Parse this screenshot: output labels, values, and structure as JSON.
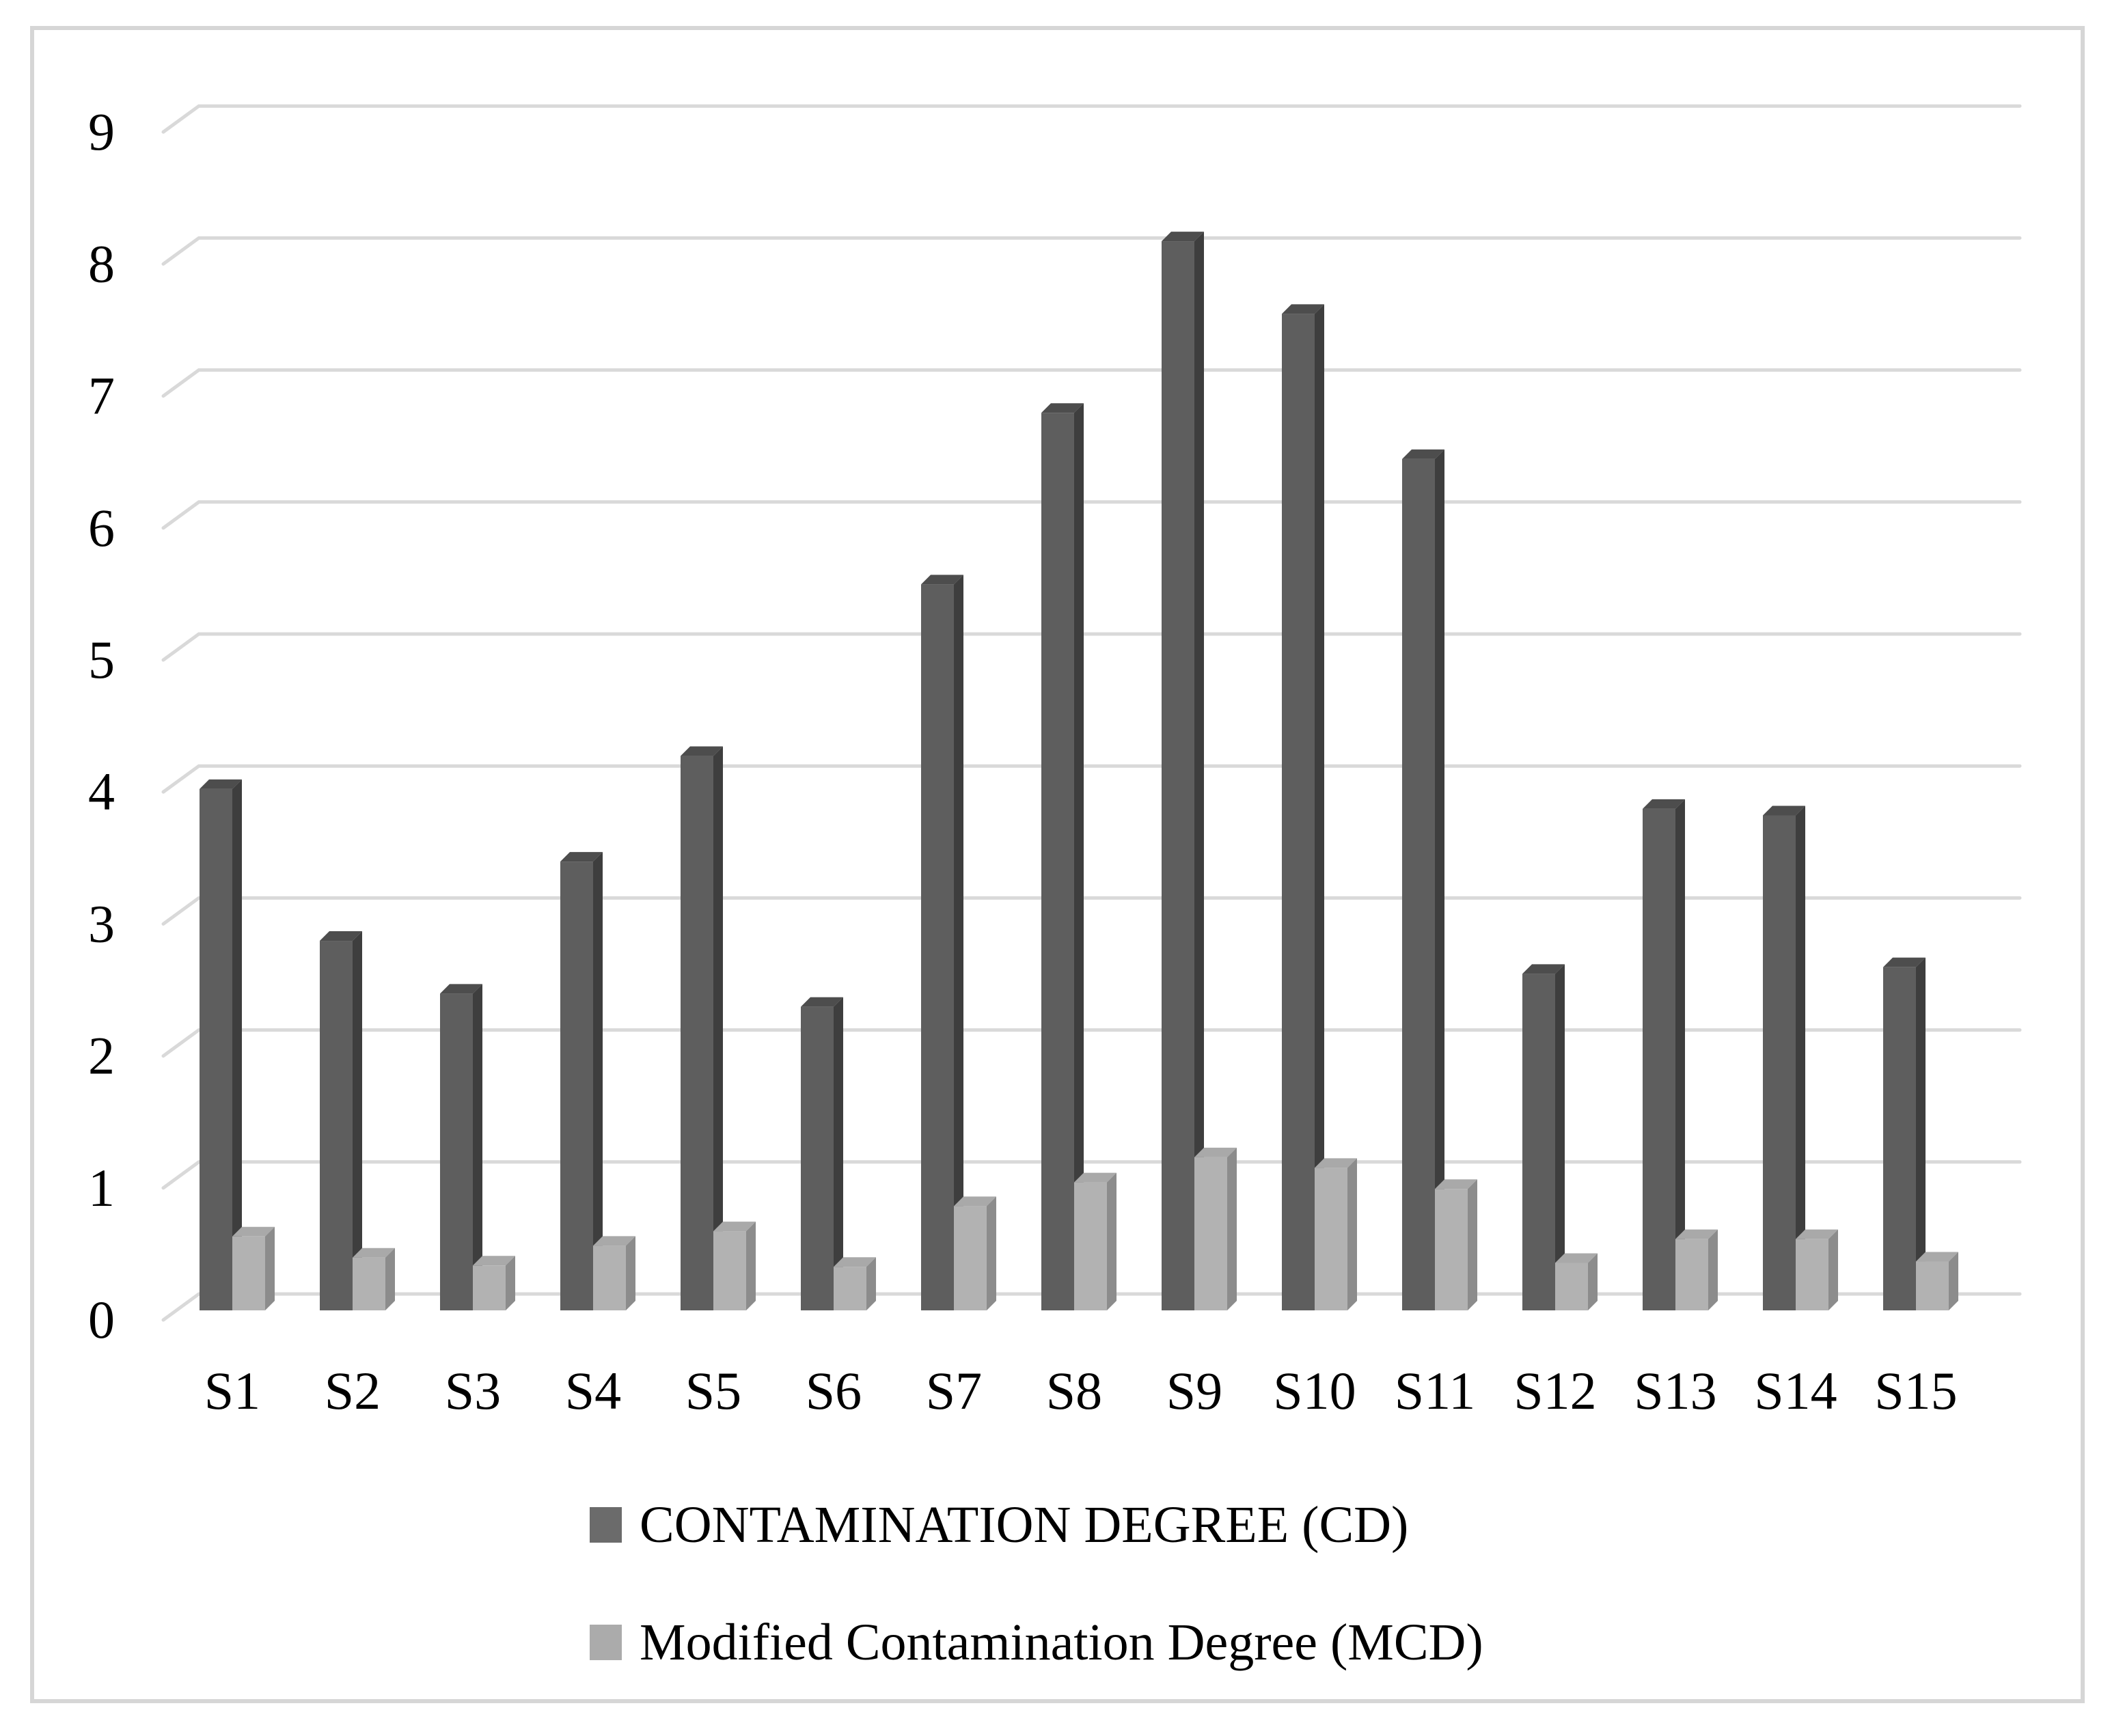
{
  "figure": {
    "border_color": "#d6d6d6",
    "background_color": "#ffffff"
  },
  "chart_data": {
    "type": "bar",
    "style": "3d-clustered-column",
    "title": "",
    "xlabel": "",
    "ylabel": "",
    "categories": [
      "S1",
      "S2",
      "S3",
      "S4",
      "S5",
      "S6",
      "S7",
      "S8",
      "S9",
      "S10",
      "S11",
      "S12",
      "S13",
      "S14",
      "S15"
    ],
    "series": [
      {
        "name": "CONTAMINATION DEGREE (CD)",
        "values": [
          3.95,
          2.8,
          2.4,
          3.4,
          4.2,
          2.3,
          5.5,
          6.8,
          8.1,
          7.55,
          6.45,
          2.55,
          3.8,
          3.75,
          2.6
        ],
        "colors": {
          "front": "#5e5e5e",
          "side": "#3e3e3e",
          "top": "#4d4d4d",
          "legend": "#6b6b6b"
        }
      },
      {
        "name": "Modified Contamination Degree (MCD)",
        "values": [
          0.56,
          0.4,
          0.34,
          0.49,
          0.6,
          0.33,
          0.79,
          0.97,
          1.16,
          1.08,
          0.92,
          0.36,
          0.54,
          0.54,
          0.37
        ],
        "colors": {
          "front": "#b2b2b2",
          "side": "#8c8c8c",
          "top": "#a9a9a9",
          "legend": "#ababab"
        }
      }
    ],
    "ylim": [
      0,
      9
    ],
    "yticks": [
      "0",
      "1",
      "2",
      "3",
      "4",
      "5",
      "6",
      "7",
      "8",
      "9"
    ],
    "grid": true,
    "gridline_color": "#d9d9d9",
    "text_color": "#000000",
    "legend_position": "bottom-left"
  }
}
